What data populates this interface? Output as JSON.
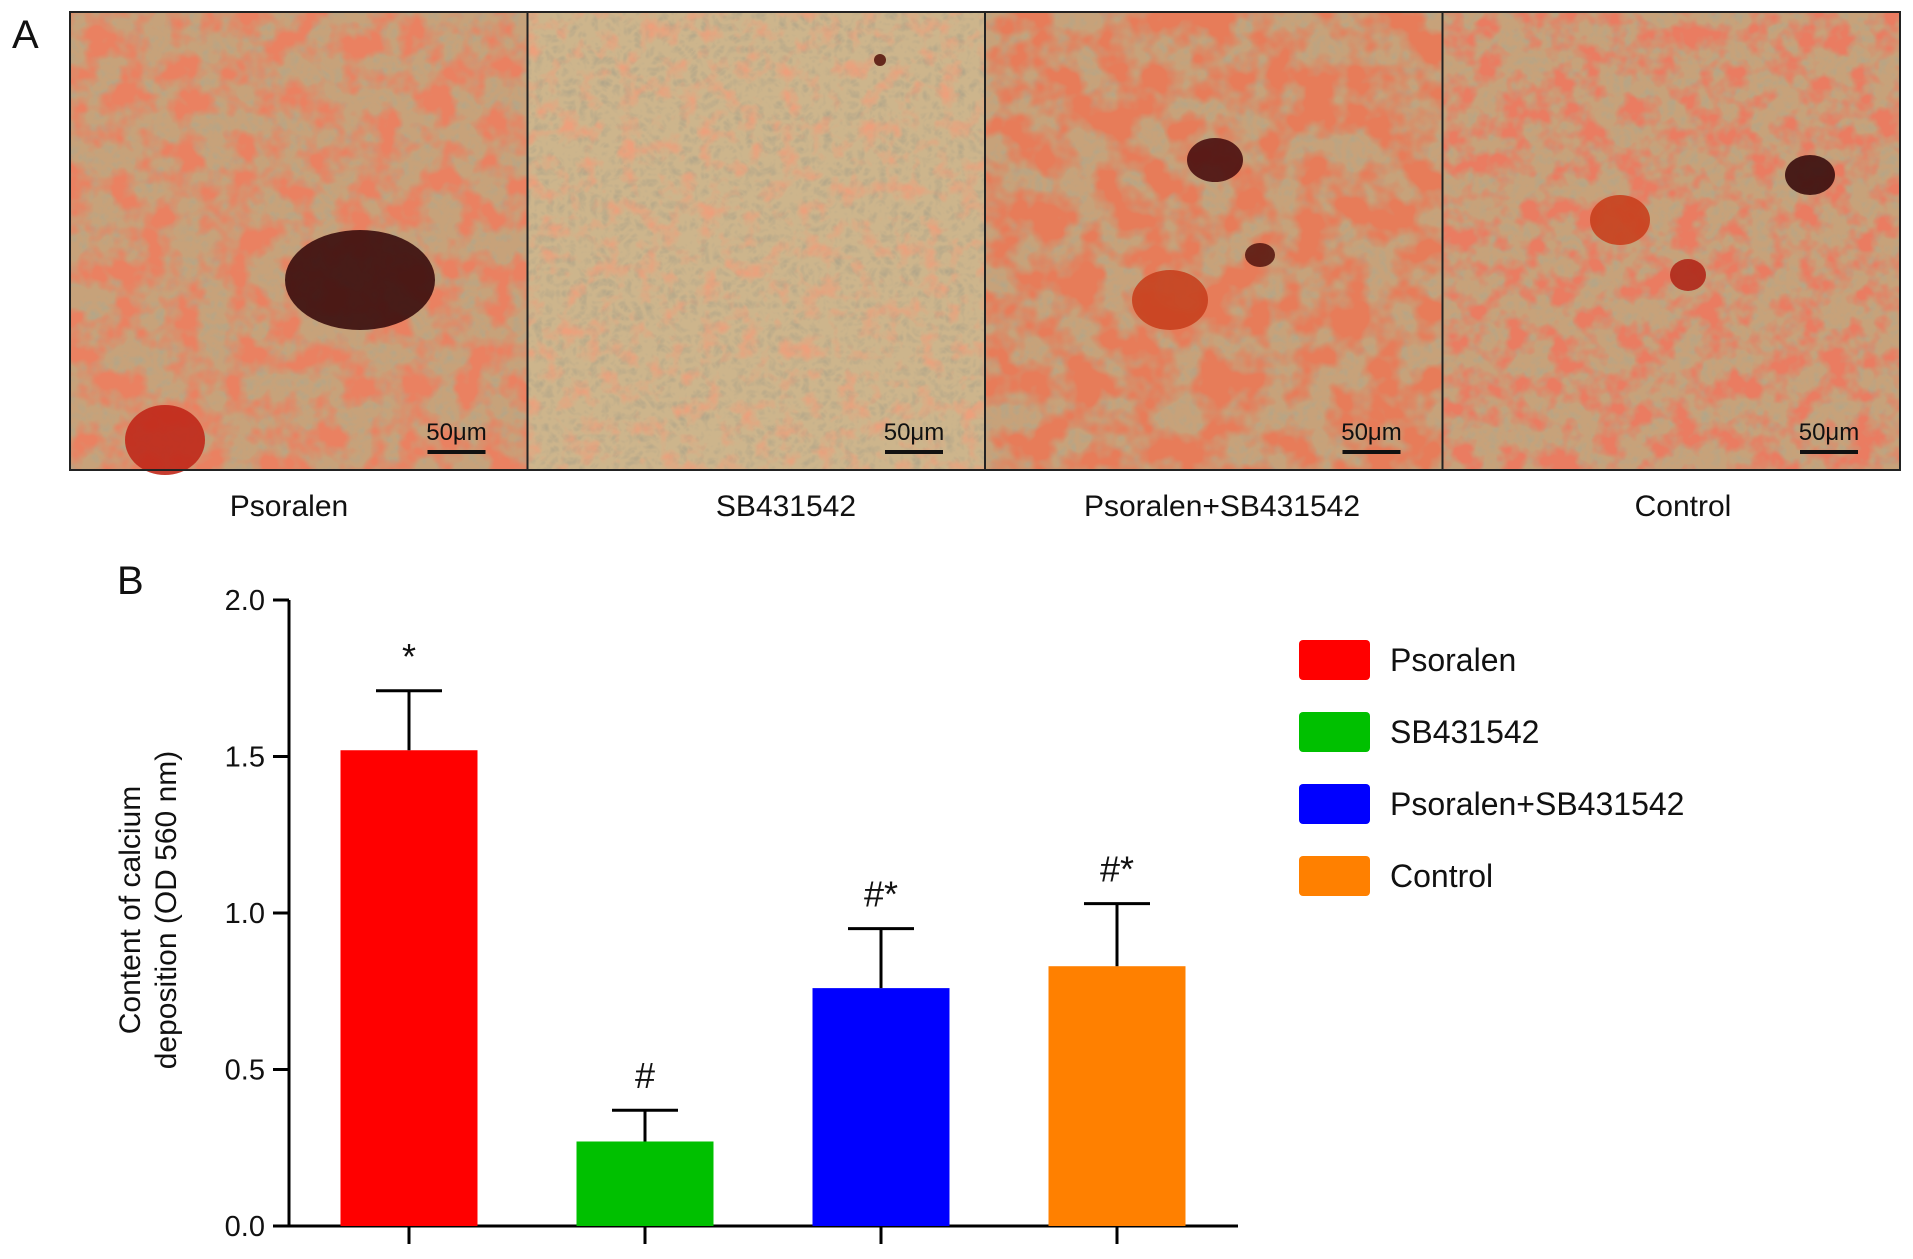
{
  "panel_a": {
    "label": "A",
    "images": [
      {
        "caption": "Psoralen",
        "scale_bar": "50μm"
      },
      {
        "caption": "SB431542",
        "scale_bar": "50μm"
      },
      {
        "caption": "Psoralen+SB431542",
        "scale_bar": "50μm"
      },
      {
        "caption": "Control",
        "scale_bar": "50μm"
      }
    ]
  },
  "chart_data": {
    "type": "bar",
    "panel_label": "B",
    "ylabel": [
      "Content of calcium",
      "deposition (OD 560 nm)"
    ],
    "categories": [
      "Psoralen",
      "SB431542",
      "Psoralen+SB431542",
      "Control"
    ],
    "values": [
      1.52,
      0.27,
      0.76,
      0.83
    ],
    "errors": [
      0.19,
      0.1,
      0.19,
      0.2
    ],
    "annotations": [
      "*",
      "#",
      "#*",
      "#*"
    ],
    "colors": [
      "#ff0000",
      "#00c000",
      "#0000ff",
      "#ff8000"
    ],
    "ylim": [
      0,
      2
    ],
    "yticks": [
      {
        "value": 0,
        "label": "0.0"
      },
      0.5,
      {
        "value": 1,
        "label": "1.0"
      },
      1.5,
      {
        "value": 2,
        "label": "2.0"
      }
    ],
    "grid": false,
    "legend": "right"
  }
}
